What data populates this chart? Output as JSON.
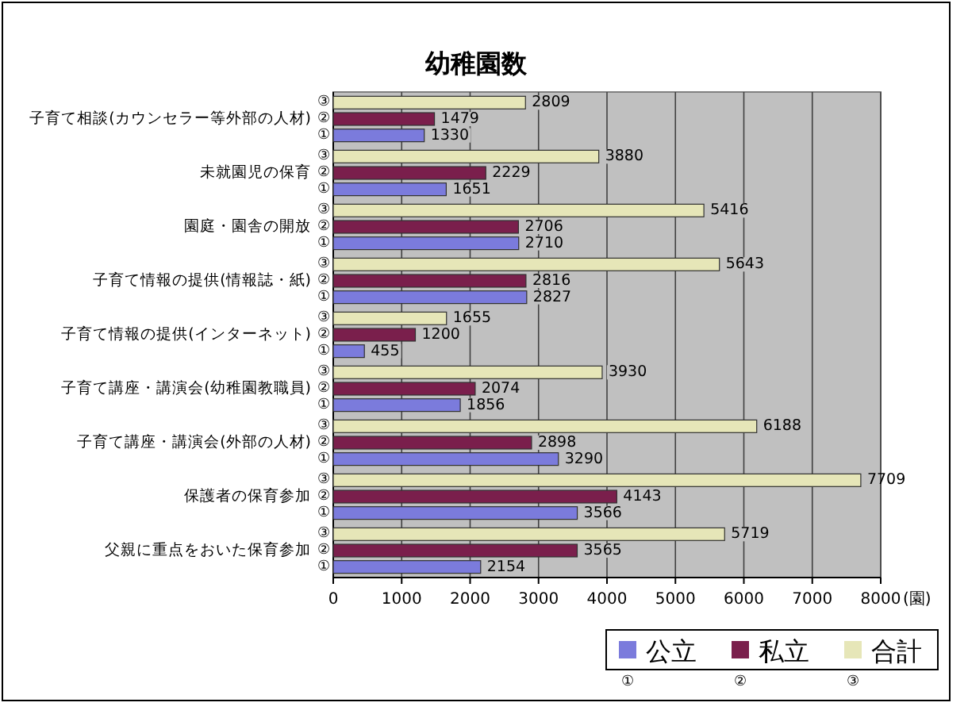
{
  "chart_data": {
    "type": "bar",
    "orientation": "horizontal",
    "title": "幼稚園数",
    "xlabel": "(園)",
    "categories": [
      "子育て相談(カウンセラー等外部の人材)",
      "未就園児の保育",
      "園庭・園舎の開放",
      "子育て情報の提供(情報誌・紙)",
      "子育て情報の提供(インターネット)",
      "子育て講座・講演会(幼稚園教職員)",
      "子育て講座・講演会(外部の人材)",
      "保護者の保育参加",
      "父親に重点をおいた保育参加"
    ],
    "series": [
      {
        "name": "公立",
        "color": "#7b7bdc",
        "values": [
          1330,
          1651,
          2710,
          2827,
          455,
          1856,
          3290,
          3566,
          2154
        ]
      },
      {
        "name": "私立",
        "color": "#7a1f4c",
        "values": [
          1479,
          2229,
          2706,
          2816,
          1200,
          2074,
          2898,
          4143,
          3565
        ]
      },
      {
        "name": "合計",
        "color": "#e6e6b8",
        "values": [
          2809,
          3880,
          5416,
          5643,
          1655,
          3930,
          6188,
          7709,
          5719
        ]
      }
    ],
    "xlim": [
      0,
      8000
    ],
    "xticks": [
      0,
      1000,
      2000,
      3000,
      4000,
      5000,
      6000,
      7000,
      8000
    ],
    "grid": "x",
    "legend": "bottom right",
    "data_labels": true,
    "annotations": [
      "①",
      "②",
      "③",
      "①",
      "②",
      "③",
      "①",
      "②",
      "③",
      "①",
      "②",
      "③",
      "①",
      "②",
      "③",
      "①",
      "②",
      "③",
      "①",
      "②",
      "③",
      "①",
      "②",
      "③",
      "①",
      "②",
      "③",
      "①",
      "②",
      "③"
    ]
  }
}
